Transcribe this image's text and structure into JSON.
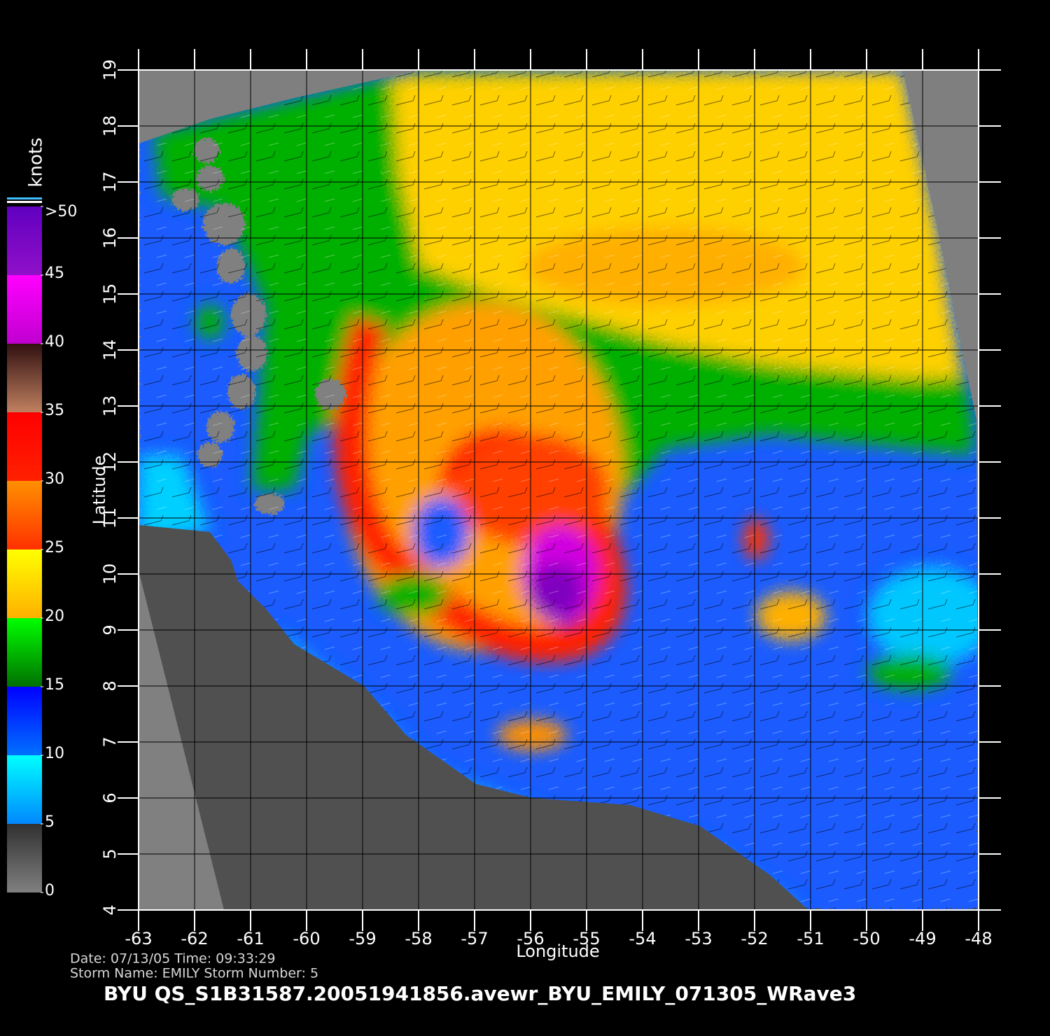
{
  "chart_data": {
    "type": "map",
    "title": "BYU  QS_S1B31587.20051941856.avewr_BYU_EMILY_071305_WRave3",
    "info": [
      "Date: 07/13/05   Time: 09:33:29",
      "Storm  Name: EMILY   Storm  Number: 5"
    ],
    "x_label": "Longitude",
    "y_label": "Latitude",
    "xlim": [
      -63,
      -48
    ],
    "ylim": [
      4,
      19
    ],
    "xticks": [
      -63,
      -62,
      -61,
      -60,
      -59,
      -58,
      -57,
      -56,
      -55,
      -54,
      -53,
      -52,
      -51,
      -50,
      -49,
      -48
    ],
    "yticks": [
      4,
      5,
      6,
      7,
      8,
      9,
      10,
      11,
      12,
      13,
      14,
      15,
      16,
      17,
      18,
      19
    ],
    "grid": true,
    "colorbar": {
      "label": "knots",
      "lim": [
        0,
        50
      ],
      "ticks": [
        0,
        5,
        10,
        15,
        20,
        25,
        30,
        35,
        40,
        45,
        {
          "value": 50,
          "label": ">50"
        }
      ],
      "colors": [
        [
          "#303030",
          "#808080"
        ],
        [
          "#00ffff",
          "#0088ff"
        ],
        [
          "#0000ff",
          "#0070ff"
        ],
        [
          "#00ff00",
          "#007000"
        ],
        [
          "#ffff00",
          "#ffb000"
        ],
        [
          "#ff9000",
          "#ff3000"
        ],
        [
          "#ff0000",
          "#ff2000"
        ],
        [
          "#301010",
          "#c08060"
        ],
        [
          "#ff00ff",
          "#c000d0"
        ],
        [
          "#6000c0",
          "#9010c8"
        ]
      ]
    }
  }
}
